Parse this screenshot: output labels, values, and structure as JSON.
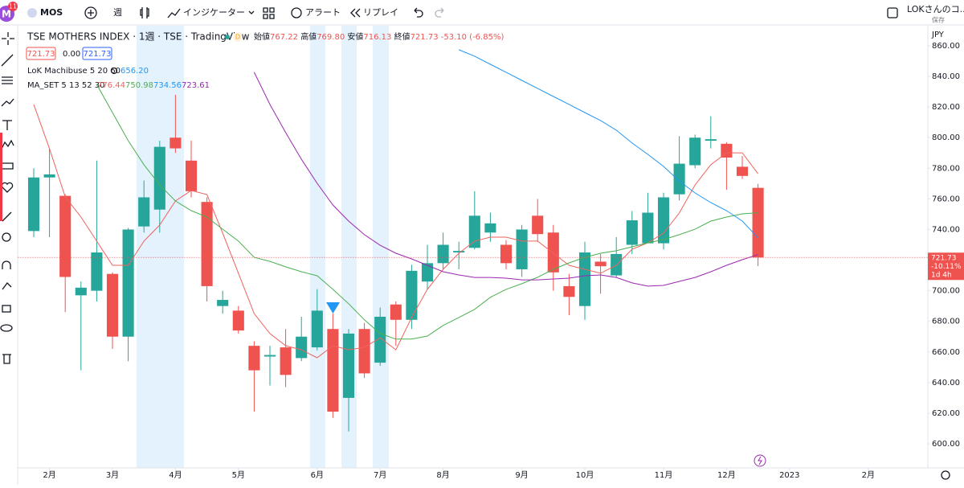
{
  "toolbar": {
    "avatar": "M",
    "badge": "11",
    "symbol": "MOS",
    "interval": "週",
    "indicators": "インジケーター",
    "alert": "アラート",
    "replay": "リプレイ",
    "layout_name": "LOKさんのコ...",
    "save": "保存"
  },
  "legend": {
    "title": "TSE MOTHERS INDEX · 1週 · TSE · TradingView",
    "badge": "D",
    "ohlc": [
      {
        "label": "始値",
        "value": "767.22"
      },
      {
        "label": "高値",
        "value": "769.80"
      },
      {
        "label": "安値",
        "value": "716.13"
      },
      {
        "label": "終値",
        "value": "721.73"
      }
    ],
    "change": "-53.10 (-6.85%)",
    "price_boxes": [
      "721.73",
      "0.00",
      "721.73"
    ],
    "indicator": {
      "label": "LoK Machibuse 5 20 60",
      "value": "656.20"
    },
    "ma_set": {
      "label": "MA_SET 5 13 52 30",
      "values": [
        "776.44",
        "750.98",
        "734.56",
        "723.61"
      ]
    }
  },
  "chart_data": {
    "type": "candlestick",
    "currency": "JPY",
    "open": [
      739,
      774,
      762,
      697,
      700,
      711,
      670,
      742,
      753,
      800,
      785,
      758,
      690,
      687,
      664,
      657,
      663,
      656,
      663,
      675,
      630,
      675,
      653,
      691,
      681,
      706,
      718,
      725,
      728,
      738,
      730,
      714,
      749,
      738,
      703,
      690,
      719,
      710,
      730,
      731,
      731,
      763,
      782,
      798,
      796,
      781,
      767.22
    ],
    "high": [
      780,
      793,
      763,
      706,
      785,
      712,
      741,
      772,
      798,
      828,
      798,
      761,
      700,
      690,
      667,
      664,
      675,
      683,
      701,
      685,
      675,
      679,
      689,
      693,
      717,
      730,
      738,
      732,
      765,
      751,
      733,
      743,
      760,
      743,
      711,
      732,
      724,
      735,
      752,
      764,
      764,
      801,
      802,
      814,
      797,
      788,
      769.8
    ],
    "low": [
      735,
      735,
      686,
      648,
      693,
      662,
      654,
      738,
      738,
      790,
      761,
      693,
      685,
      672,
      621,
      638,
      637,
      654,
      661,
      617,
      608,
      643,
      651,
      664,
      675,
      701,
      714,
      714,
      727,
      732,
      714,
      709,
      732,
      700,
      684,
      681,
      698,
      709,
      724,
      731,
      727,
      759,
      780,
      793,
      766,
      773,
      716.13
    ],
    "close": [
      774,
      776,
      709,
      702,
      725,
      670,
      740,
      761,
      794,
      793,
      765,
      703,
      694,
      674,
      648,
      658,
      645,
      670,
      687,
      621,
      672,
      646,
      683,
      681,
      713,
      718,
      730,
      726,
      749,
      744,
      718,
      740,
      737,
      712,
      696,
      725,
      716,
      724,
      746,
      751,
      761,
      783,
      800,
      799,
      787,
      775,
      721.73
    ],
    "up_color": "#26a69a",
    "down_color": "#ef5350",
    "lines": [
      {
        "color": "#f0625d",
        "values": [
          821.7,
          792.8,
          761.3,
          748.1,
          732.4,
          716.6,
          716.6,
          732.4,
          742.9,
          758.6,
          765.5,
          762.8,
          737.6,
          711.4,
          685.1,
          672,
          664.1,
          661.4,
          656.2,
          664.1,
          661.4,
          663,
          669.3,
          661.4,
          682.5,
          700.9,
          714,
          724.5,
          732.4,
          735,
          735,
          732.4,
          732.4,
          724.5,
          716.6,
          714,
          711.4,
          716.6,
          727.1,
          731.3,
          737.6,
          750.8,
          769.1,
          782.3,
          790.1,
          790.1,
          776.44
        ]
      },
      {
        "color": "#4caf50",
        "values": [
          null,
          null,
          null,
          null,
          834.8,
          816.4,
          798,
          782.3,
          769.1,
          758.6,
          752.3,
          748.1,
          740.2,
          732.4,
          721.8,
          719.2,
          715.6,
          712.4,
          709.8,
          700.9,
          691.5,
          681,
          672,
          668.4,
          668.4,
          670.4,
          677.3,
          682.5,
          687.8,
          695.7,
          700.9,
          704.6,
          708.8,
          714,
          718.2,
          721.8,
          724.5,
          726.1,
          728.7,
          731.3,
          733.4,
          736.6,
          740.2,
          745.5,
          748.1,
          750.2,
          750.98
        ]
      },
      {
        "color": "#2196f3",
        "values": [
          null,
          null,
          null,
          null,
          null,
          null,
          null,
          null,
          null,
          null,
          null,
          null,
          null,
          null,
          null,
          null,
          null,
          null,
          null,
          null,
          null,
          null,
          null,
          null,
          null,
          null,
          null,
          857.4,
          853.2,
          847.9,
          842.7,
          837.4,
          832.2,
          826.9,
          821.7,
          816.4,
          811.2,
          804.9,
          796.5,
          789.1,
          781.2,
          771.7,
          763.9,
          757.6,
          752.3,
          745.5,
          734.56
        ]
      },
      {
        "color": "#9c27b0",
        "values": [
          null,
          null,
          null,
          null,
          null,
          null,
          null,
          null,
          null,
          null,
          null,
          null,
          null,
          null,
          842.7,
          821.7,
          803.3,
          785.9,
          770.2,
          756,
          745.5,
          736.6,
          729.7,
          724.5,
          720.8,
          716.6,
          712.4,
          710.3,
          708.7,
          708.7,
          708.2,
          707.1,
          707.1,
          707.7,
          708.2,
          709.8,
          710.3,
          708.7,
          705.1,
          703,
          703.5,
          706.1,
          708.7,
          712.4,
          716.6,
          720.3,
          723.61
        ]
      }
    ],
    "last_price": 721.73,
    "price_tag": [
      "721.73",
      "-10.11%",
      "1d 4h"
    ],
    "xlim": [
      -1,
      56
    ],
    "xticks": [
      {
        "value": 1,
        "label": "2月"
      },
      {
        "value": 5,
        "label": "3月"
      },
      {
        "value": 9,
        "label": "4月"
      },
      {
        "value": 13,
        "label": "5月"
      },
      {
        "value": 18,
        "label": "6月"
      },
      {
        "value": 22,
        "label": "7月"
      },
      {
        "value": 26,
        "label": "8月"
      },
      {
        "value": 31,
        "label": "9月"
      },
      {
        "value": 35,
        "label": "10月"
      },
      {
        "value": 40,
        "label": "11月"
      },
      {
        "value": 44,
        "label": "12月"
      },
      {
        "value": 48,
        "label": "2023"
      },
      {
        "value": 53,
        "label": "2月"
      }
    ],
    "ylim": [
      585.3,
      870.5
    ],
    "yticks": [
      {
        "value": 600,
        "label": "600.00"
      },
      {
        "value": 620,
        "label": "620.00"
      },
      {
        "value": 640,
        "label": "640.00"
      },
      {
        "value": 660,
        "label": "660.00"
      },
      {
        "value": 680,
        "label": "680.00"
      },
      {
        "value": 700,
        "label": "700.00"
      },
      {
        "value": 720,
        "label": "720.00"
      },
      {
        "value": 740,
        "label": "740.00"
      },
      {
        "value": 760,
        "label": "760.00"
      },
      {
        "value": 780,
        "label": "780.00"
      },
      {
        "value": 800,
        "label": "800.00"
      },
      {
        "value": 820,
        "label": "820.00"
      },
      {
        "value": 840,
        "label": "840.00"
      },
      {
        "value": 860,
        "label": "860.00"
      }
    ],
    "grid": false
  }
}
